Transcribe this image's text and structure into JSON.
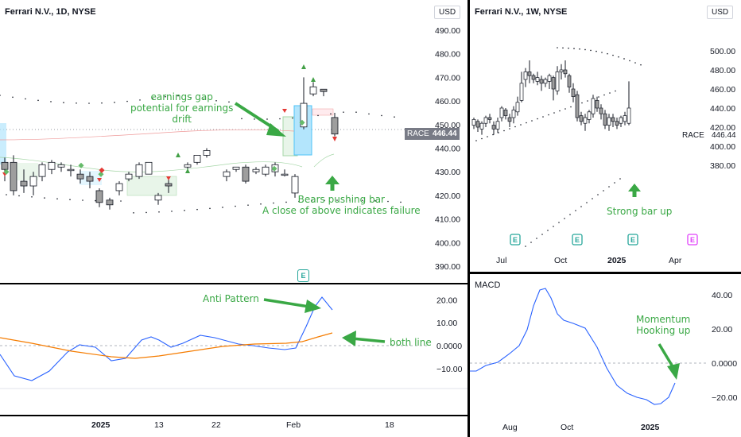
{
  "daily": {
    "title": "Ferrari N.V., 1D, NYSE",
    "currency": "USD",
    "price_ticks": [
      "490.00",
      "480.00",
      "470.00",
      "460.00",
      "450.00",
      "440.00",
      "430.00",
      "420.00",
      "410.00",
      "400.00",
      "390.00"
    ],
    "symbol_tag": "RACE",
    "price_tag": "446.44",
    "annotations": {
      "earnings_note": "earnings gap\npotential for earnings\ndrift",
      "bears_note": "Bears pushing bar\nA close of above indicates failure"
    },
    "earnings_marker": "E"
  },
  "daily_macd": {
    "ticks": [
      "20.00",
      "10.00",
      "0.0000",
      "−10.00"
    ],
    "annotations": {
      "anti_pattern": "Anti Pattern",
      "both_line": "both line"
    }
  },
  "daily_xaxis": [
    "2025",
    "13",
    "22",
    "Feb",
    "18"
  ],
  "weekly": {
    "title": "Ferrari N.V., 1W, NYSE",
    "currency": "USD",
    "price_ticks": [
      "500.00",
      "480.00",
      "460.00",
      "440.00",
      "420.00",
      "400.00",
      "380.00"
    ],
    "symbol_tag": "RACE",
    "price_tag": "446.44",
    "annotation": "Strong bar up",
    "xaxis": [
      "Jul",
      "Oct",
      "2025",
      "Apr"
    ],
    "earnings_markers": [
      "E",
      "E",
      "E",
      "E"
    ]
  },
  "weekly_macd": {
    "title": "MACD",
    "ticks": [
      "40.00",
      "20.00",
      "0.0000",
      "−20.00"
    ],
    "annotation": "Momentum\nHooking up",
    "xaxis": [
      "Aug",
      "Oct",
      "2025"
    ]
  },
  "colors": {
    "green_note": "#3aa845",
    "macd_line": "#2962ff",
    "signal_line": "#f57c00",
    "earnings": "#26a69a",
    "earnings_future": "#e040fb"
  }
}
